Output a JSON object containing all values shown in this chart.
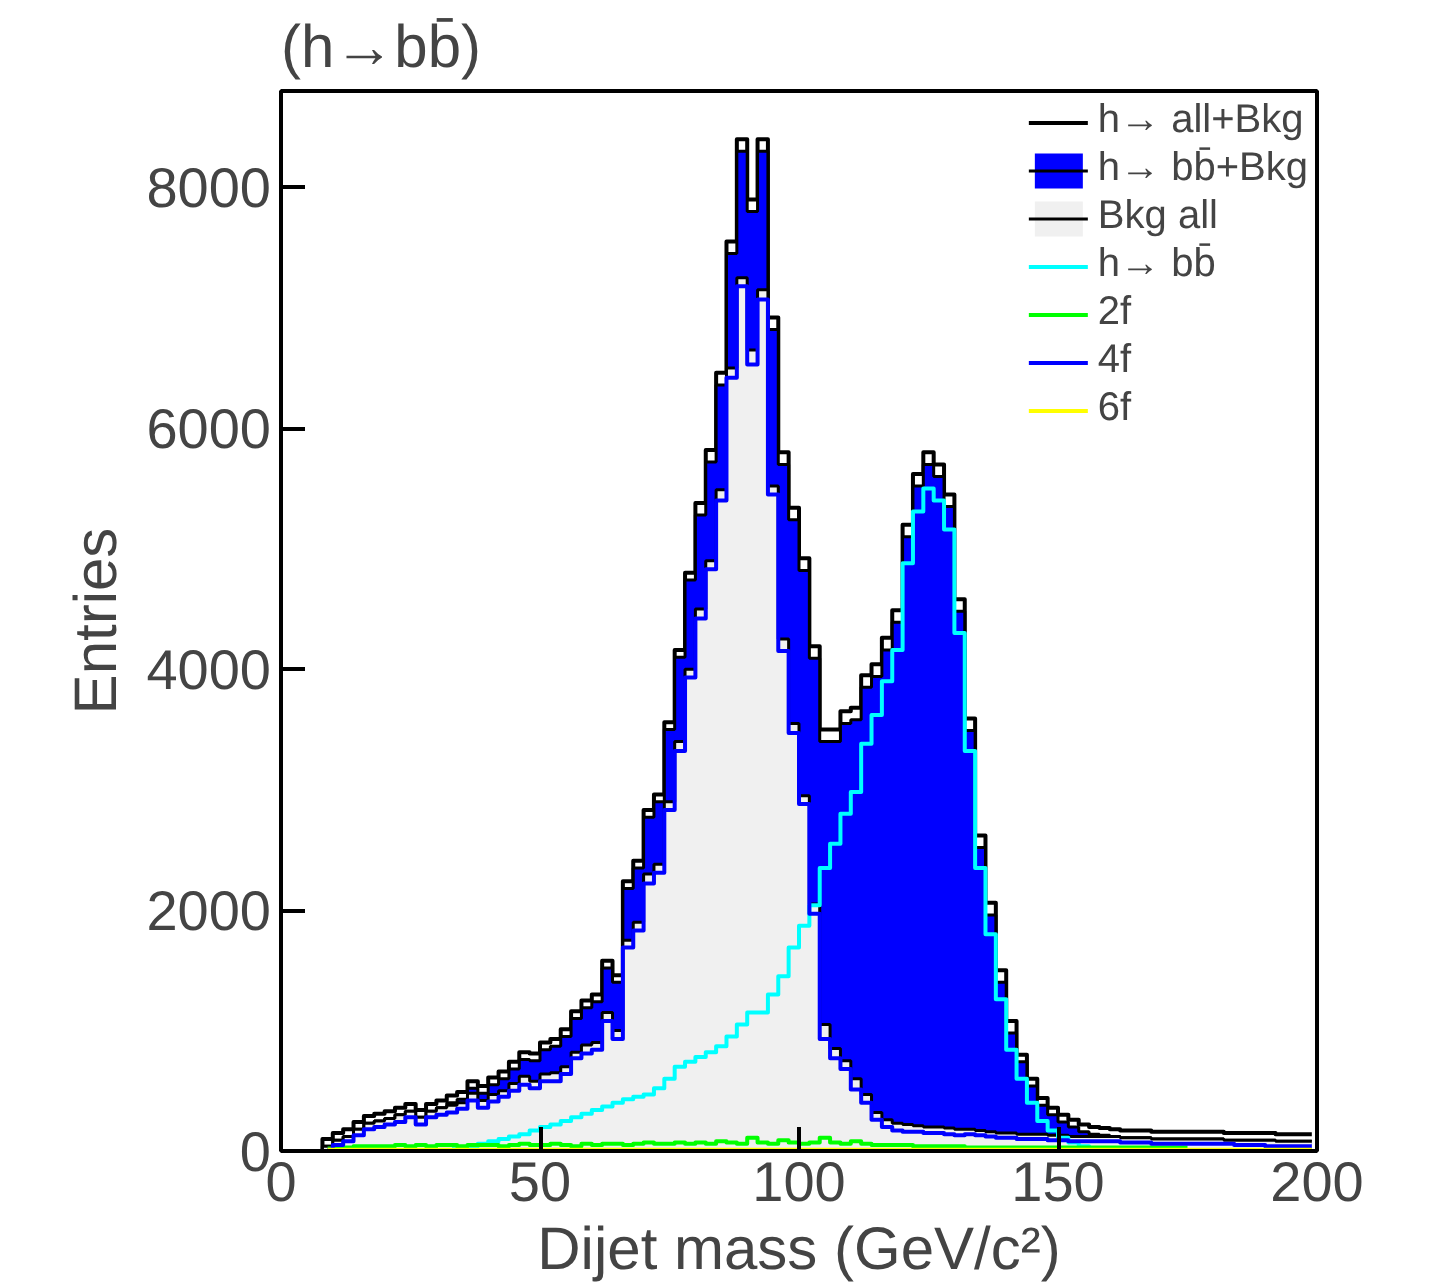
{
  "chart_data": {
    "type": "step",
    "title": "(h→bb̄)",
    "xlabel": "Dijet mass (GeV/c²)",
    "ylabel": "Entries",
    "xlim": [
      0,
      200
    ],
    "ylim": [
      0,
      8800
    ],
    "xticks": [
      0,
      50,
      100,
      150,
      200
    ],
    "yticks": [
      0,
      2000,
      4000,
      6000,
      8000
    ],
    "legend": "top right",
    "x": [
      1,
      3,
      5,
      7,
      9,
      11,
      13,
      15,
      17,
      19,
      21,
      23,
      25,
      27,
      29,
      31,
      33,
      35,
      37,
      39,
      41,
      43,
      45,
      47,
      49,
      51,
      53,
      55,
      57,
      59,
      61,
      63,
      65,
      67,
      69,
      71,
      73,
      75,
      77,
      79,
      81,
      83,
      85,
      87,
      89,
      91,
      93,
      95,
      97,
      99,
      101,
      103,
      105,
      107,
      109,
      111,
      113,
      115,
      117,
      119,
      121,
      123,
      125,
      127,
      129,
      131,
      133,
      135,
      137,
      139,
      141,
      143,
      145,
      147,
      149,
      151,
      153,
      155,
      157,
      159,
      161,
      163,
      165,
      167,
      169,
      171,
      173,
      175,
      177,
      179,
      181,
      183,
      185,
      187,
      189,
      191,
      193,
      195,
      197,
      199
    ],
    "series": [
      {
        "name": "h→ all+Bkg",
        "color": "#000000",
        "values": [
          0,
          0,
          0,
          0,
          100,
          150,
          180,
          240,
          290,
          310,
          330,
          360,
          390,
          340,
          390,
          420,
          460,
          490,
          580,
          540,
          610,
          660,
          740,
          820,
          810,
          900,
          930,
          1010,
          1160,
          1250,
          1300,
          1580,
          1460,
          2240,
          2410,
          2830,
          2960,
          3560,
          4160,
          4800,
          5380,
          5820,
          6460,
          7550,
          8400,
          7900,
          8400,
          6920,
          5800,
          5340,
          4920,
          4190,
          3500,
          3500,
          3650,
          3680,
          3950,
          4040,
          4260,
          4490,
          5200,
          5620,
          5800,
          5700,
          5450,
          4580,
          3590,
          2620,
          2060,
          1500,
          1080,
          800,
          600,
          440,
          360,
          300,
          260,
          220,
          200,
          190,
          180,
          170,
          170,
          170,
          160,
          160,
          160,
          160,
          160,
          160,
          160,
          150,
          150,
          150,
          150,
          150,
          140,
          140,
          140,
          140
        ]
      },
      {
        "name": "h→ bb̄+Bkg",
        "type": "area",
        "color": "#0000ff",
        "values": [
          0,
          0,
          0,
          0,
          40,
          90,
          120,
          180,
          230,
          250,
          270,
          300,
          330,
          280,
          330,
          360,
          400,
          430,
          520,
          480,
          550,
          600,
          680,
          760,
          750,
          840,
          870,
          950,
          1100,
          1190,
          1240,
          1520,
          1400,
          2180,
          2350,
          2770,
          2900,
          3500,
          4100,
          4740,
          5280,
          5720,
          6360,
          7450,
          8300,
          7800,
          8300,
          6820,
          5700,
          5240,
          4820,
          4090,
          3400,
          3400,
          3550,
          3580,
          3850,
          3940,
          4160,
          4390,
          5100,
          5520,
          5700,
          5600,
          5350,
          4480,
          3490,
          2520,
          1960,
          1400,
          980,
          740,
          540,
          380,
          300,
          240,
          200,
          160,
          140,
          130,
          120,
          110,
          110,
          110,
          100,
          100,
          100,
          100,
          100,
          100,
          100,
          90,
          90,
          90,
          90,
          90,
          80,
          80,
          80,
          80
        ]
      },
      {
        "name": "Bkg all",
        "type": "area",
        "color": "#f0f0f0",
        "values": [
          0,
          0,
          0,
          0,
          40,
          90,
          120,
          180,
          230,
          250,
          270,
          300,
          330,
          280,
          330,
          360,
          380,
          400,
          480,
          420,
          470,
          500,
          560,
          620,
          580,
          640,
          650,
          700,
          820,
          880,
          900,
          1150,
          1000,
          1750,
          1900,
          2300,
          2380,
          2900,
          3400,
          4000,
          4500,
          4900,
          5490,
          6500,
          7250,
          6650,
          7150,
          5520,
          4250,
          3550,
          2950,
          2050,
          1050,
          850,
          750,
          600,
          470,
          320,
          260,
          230,
          220,
          210,
          200,
          200,
          190,
          180,
          180,
          170,
          160,
          150,
          150,
          140,
          140,
          140,
          130,
          130,
          120,
          120,
          120,
          120,
          120,
          110,
          110,
          110,
          100,
          100,
          100,
          100,
          100,
          100,
          100,
          90,
          90,
          90,
          90,
          90,
          80,
          80,
          80,
          80
        ]
      },
      {
        "name": "h→ bb̄",
        "color": "#00ffff",
        "values": [
          null,
          null,
          null,
          null,
          null,
          null,
          null,
          null,
          null,
          null,
          null,
          null,
          null,
          null,
          null,
          null,
          20,
          30,
          40,
          60,
          80,
          100,
          120,
          140,
          170,
          200,
          220,
          250,
          280,
          310,
          340,
          370,
          400,
          430,
          450,
          470,
          520,
          600,
          700,
          740,
          780,
          820,
          870,
          950,
          1050,
          1150,
          1150,
          1300,
          1450,
          1690,
          1870,
          2040,
          2350,
          2550,
          2800,
          2980,
          3380,
          3620,
          3900,
          4160,
          4880,
          5310,
          5500,
          5400,
          5160,
          4300,
          3320,
          2350,
          1800,
          1260,
          840,
          600,
          400,
          250,
          170,
          110,
          70,
          40,
          20,
          null,
          null,
          null,
          null,
          null,
          null,
          null,
          null,
          null,
          null,
          null,
          null,
          null,
          null,
          null,
          null,
          null,
          null,
          null,
          null,
          null
        ]
      },
      {
        "name": "2f",
        "color": "#00ff00",
        "values": [
          null,
          null,
          null,
          null,
          20,
          30,
          30,
          40,
          40,
          40,
          40,
          50,
          40,
          50,
          40,
          50,
          50,
          40,
          50,
          50,
          50,
          40,
          50,
          60,
          50,
          50,
          60,
          50,
          40,
          60,
          50,
          60,
          60,
          50,
          60,
          70,
          60,
          60,
          70,
          60,
          70,
          60,
          80,
          70,
          60,
          110,
          70,
          60,
          90,
          70,
          60,
          70,
          110,
          70,
          60,
          80,
          60,
          50,
          50,
          50,
          50,
          40,
          40,
          40,
          40,
          40,
          30,
          30,
          30,
          30,
          30,
          30,
          30,
          30,
          30,
          30,
          30,
          30,
          30,
          30,
          30,
          30,
          30,
          30,
          30,
          30,
          30,
          30,
          null,
          null,
          null,
          null,
          null,
          null,
          null,
          null,
          null,
          null,
          null,
          null
        ]
      },
      {
        "name": "4f",
        "color": "#0000ff",
        "values": [
          null,
          null,
          null,
          null,
          10,
          50,
          80,
          130,
          180,
          200,
          220,
          240,
          280,
          220,
          280,
          300,
          320,
          350,
          420,
          360,
          410,
          450,
          500,
          550,
          520,
          580,
          580,
          640,
          770,
          810,
          840,
          1080,
          930,
          1690,
          1830,
          2220,
          2310,
          2830,
          3320,
          3930,
          4420,
          4830,
          5400,
          6420,
          7180,
          6530,
          7070,
          5450,
          4150,
          3470,
          2880,
          1970,
          930,
          770,
          680,
          510,
          400,
          260,
          200,
          170,
          160,
          160,
          150,
          150,
          140,
          130,
          140,
          130,
          120,
          110,
          110,
          100,
          100,
          100,
          90,
          90,
          80,
          80,
          80,
          80,
          80,
          70,
          70,
          70,
          60,
          60,
          60,
          60,
          60,
          60,
          60,
          60,
          50,
          50,
          50,
          40,
          40,
          40,
          40,
          40
        ]
      },
      {
        "name": "6f",
        "color": "#ffff00",
        "values": [
          null,
          null,
          null,
          null,
          10,
          10,
          10,
          10,
          10,
          10,
          10,
          10,
          10,
          10,
          10,
          10,
          10,
          10,
          10,
          10,
          10,
          10,
          10,
          10,
          10,
          10,
          10,
          10,
          10,
          10,
          10,
          10,
          10,
          10,
          10,
          10,
          10,
          10,
          10,
          10,
          10,
          10,
          10,
          10,
          10,
          10,
          10,
          10,
          10,
          10,
          10,
          10,
          10,
          10,
          10,
          10,
          10,
          10,
          10,
          10,
          10,
          10,
          10,
          10,
          10,
          10,
          10,
          10,
          10,
          10,
          10,
          10,
          10,
          10,
          10,
          10,
          10,
          10,
          10,
          10,
          10,
          10,
          10,
          10,
          10,
          10,
          10,
          10,
          10,
          10,
          10,
          10,
          10,
          10,
          10,
          10,
          10,
          10,
          10,
          10
        ]
      }
    ]
  }
}
